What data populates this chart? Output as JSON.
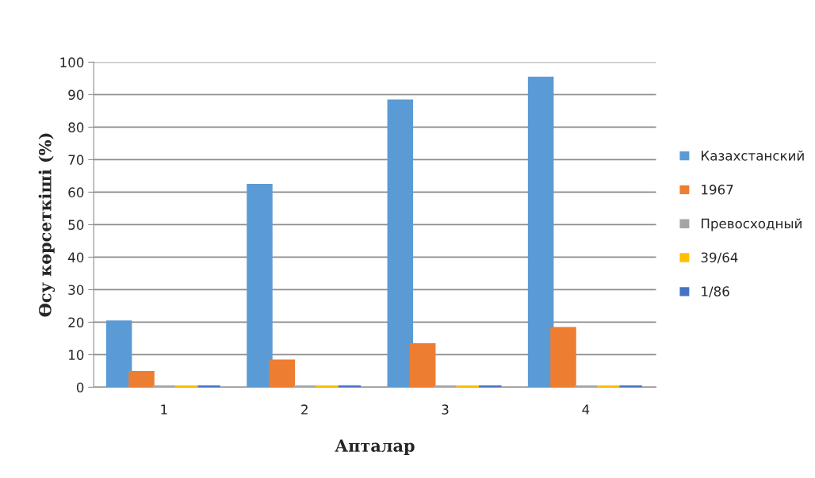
{
  "chart_data": {
    "type": "bar",
    "xlabel": "Апталар",
    "ylabel": "Өсу көрсеткіші (%)",
    "categories": [
      "1",
      "2",
      "3",
      "4"
    ],
    "series": [
      {
        "name": "Казахстанский",
        "color": "#5b9bd5",
        "values": [
          20,
          62,
          88,
          95
        ]
      },
      {
        "name": "1967",
        "color": "#ed7d31",
        "values": [
          4.5,
          8,
          13,
          18
        ]
      },
      {
        "name": "Превосходный",
        "color": "#a5a5a5",
        "values": [
          0,
          0,
          0,
          0
        ]
      },
      {
        "name": "39/64",
        "color": "#ffc000",
        "values": [
          0,
          0,
          0,
          0
        ]
      },
      {
        "name": "1/86",
        "color": "#4472c4",
        "values": [
          0,
          0,
          0,
          0
        ]
      }
    ],
    "ylim": [
      0,
      100
    ],
    "yticks": [
      0,
      10,
      20,
      30,
      40,
      50,
      60,
      70,
      80,
      90,
      100
    ],
    "grid": "y",
    "legend": "right"
  }
}
